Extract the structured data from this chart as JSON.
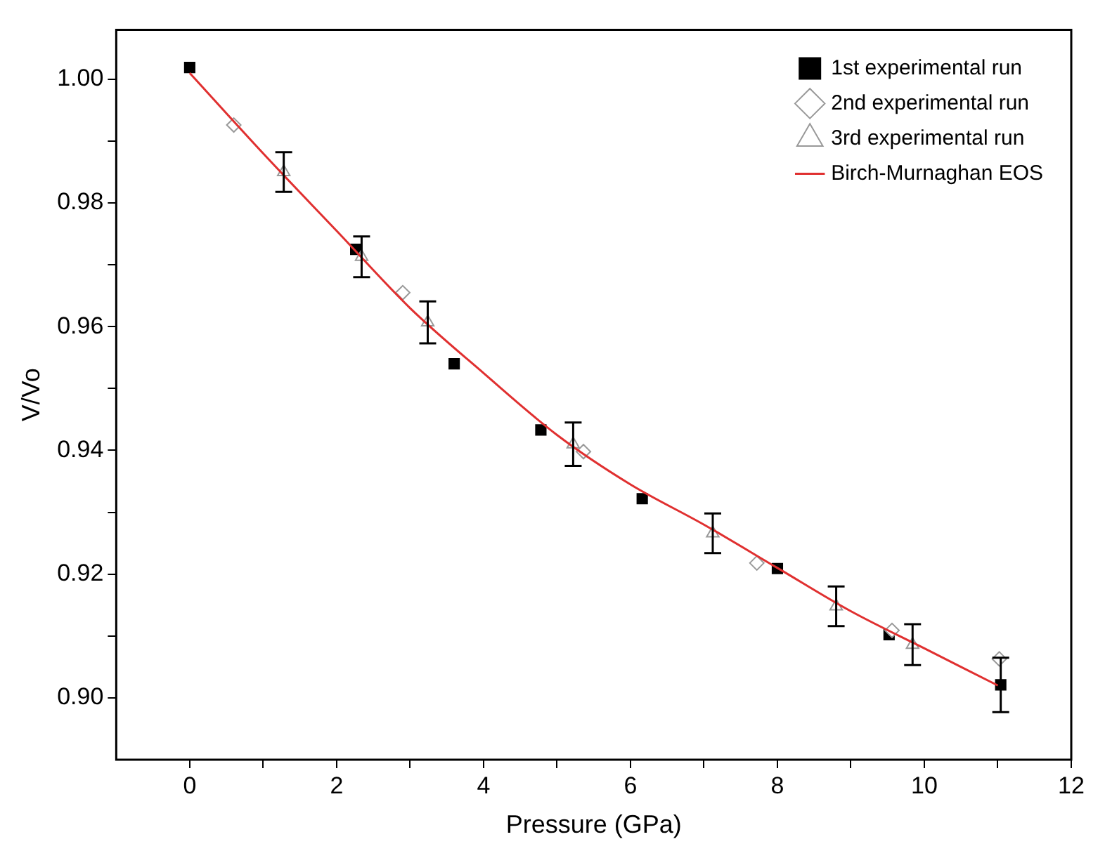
{
  "chart_data": {
    "type": "scatter",
    "xlabel": "Pressure (GPa)",
    "ylabel": "V/Vo",
    "xlim": [
      -1,
      12
    ],
    "ylim": [
      0.89,
      1.008
    ],
    "xticks": [
      0,
      {
        "value": 1,
        "label": null
      },
      2,
      {
        "value": 3,
        "label": null
      },
      4,
      {
        "value": 5,
        "label": null
      },
      6,
      {
        "value": 7,
        "label": null
      },
      8,
      {
        "value": 9,
        "label": null
      },
      10,
      {
        "value": 11,
        "label": null
      },
      12
    ],
    "yticks": [
      {
        "value": 0.9,
        "label": "0.90"
      },
      {
        "value": 0.91,
        "label": null
      },
      {
        "value": 0.92,
        "label": "0.92"
      },
      {
        "value": 0.93,
        "label": null
      },
      {
        "value": 0.94,
        "label": "0.94"
      },
      {
        "value": 0.95,
        "label": null
      },
      {
        "value": 0.96,
        "label": "0.96"
      },
      {
        "value": 0.97,
        "label": null
      },
      {
        "value": 0.98,
        "label": "0.98"
      },
      {
        "value": 0.99,
        "label": null
      },
      {
        "value": 1.0,
        "label": "1.00"
      }
    ],
    "grid": false,
    "legend": "top right",
    "series": [
      {
        "name": "1st experimental run",
        "color": "#000000",
        "marker": "square",
        "x": [
          0,
          2.26,
          3.6,
          4.78,
          6.16,
          8.0,
          9.52,
          11.04
        ],
        "values": [
          1.0019,
          0.9725,
          0.954,
          0.9433,
          0.9322,
          0.9209,
          0.9102,
          0.9021
        ],
        "errors": [
          null,
          null,
          null,
          null,
          null,
          null,
          null,
          0.0044
        ]
      },
      {
        "name": "2nd experimental run",
        "color": "#999999",
        "marker": "diamond",
        "x": [
          0.6,
          2.9,
          5.36,
          7.72,
          9.56,
          11.02
        ],
        "values": [
          0.9926,
          0.9655,
          0.9398,
          0.9218,
          0.9109,
          0.9063
        ]
      },
      {
        "name": "3rd experimental run",
        "color": "#999999",
        "marker": "triangle",
        "x": [
          1.28,
          2.34,
          3.24,
          5.22,
          7.12,
          8.8,
          9.84
        ],
        "values": [
          0.985,
          0.9713,
          0.9607,
          0.941,
          0.9266,
          0.9148,
          0.9086
        ],
        "errors": [
          0.0032,
          0.0033,
          0.0034,
          0.0035,
          0.0032,
          0.0032,
          0.0033
        ]
      },
      {
        "name": "Birch-Murnaghan EOS",
        "type": "line",
        "color": "#e03030",
        "marker": "none",
        "x": [
          0,
          1,
          2,
          3,
          4,
          5,
          6,
          7,
          8,
          9,
          10,
          11
        ],
        "values": [
          1.001,
          0.988,
          0.9755,
          0.963,
          0.9525,
          0.9425,
          0.9345,
          0.928,
          0.921,
          0.914,
          0.908,
          0.902
        ]
      }
    ]
  }
}
